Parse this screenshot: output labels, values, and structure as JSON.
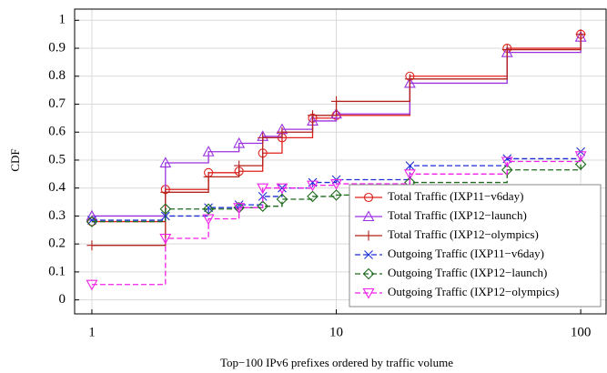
{
  "chart_data": {
    "type": "step",
    "xlabel": "Top−100 IPv6 prefixes ordered by traffic volume",
    "ylabel": "CDF",
    "x": [
      1,
      2,
      3,
      4,
      5,
      6,
      8,
      10,
      20,
      50,
      100
    ],
    "xscale": "log",
    "xlim": [
      0.85,
      127
    ],
    "xticks": [
      1,
      10,
      100
    ],
    "ylim": [
      -0.05,
      1.04
    ],
    "yticks": [
      0,
      0.1,
      0.2,
      0.3,
      0.4,
      0.5,
      0.6,
      0.7,
      0.8,
      0.9,
      1
    ],
    "grid": true,
    "legend": "lower right",
    "series": [
      {
        "name": "Total Traffic (IXP11−v6day)",
        "color": "#e0201b",
        "marker": "circle",
        "dashed": false,
        "values": [
          0.28,
          0.395,
          0.455,
          0.46,
          0.525,
          0.58,
          0.65,
          0.66,
          0.8,
          0.9,
          0.95
        ]
      },
      {
        "name": "Total Traffic (IXP12−launch)",
        "color": "#9b30e0",
        "marker": "triangle-up",
        "dashed": false,
        "values": [
          0.3,
          0.49,
          0.53,
          0.56,
          0.585,
          0.61,
          0.64,
          0.665,
          0.775,
          0.885,
          0.94
        ]
      },
      {
        "name": "Total Traffic (IXP12−olympics)",
        "color": "#b3221b",
        "marker": "plus",
        "dashed": false,
        "values": [
          0.195,
          0.385,
          0.44,
          0.48,
          0.58,
          0.6,
          0.66,
          0.71,
          0.79,
          0.895,
          0.95
        ]
      },
      {
        "name": "Outgoing Traffic (IXP11−v6day)",
        "color": "#1f2fd8",
        "marker": "x",
        "dashed": true,
        "values": [
          0.285,
          0.3,
          0.33,
          0.34,
          0.37,
          0.4,
          0.42,
          0.43,
          0.48,
          0.505,
          0.53
        ]
      },
      {
        "name": "Outgoing Traffic (IXP12−launch)",
        "color": "#1e6b1e",
        "marker": "diamond",
        "dashed": true,
        "values": [
          0.28,
          0.325,
          0.325,
          0.33,
          0.335,
          0.36,
          0.37,
          0.375,
          0.42,
          0.465,
          0.485
        ]
      },
      {
        "name": "Outgoing Traffic (IXP12−olympics)",
        "color": "#f020e8",
        "marker": "triangle-down",
        "dashed": true,
        "values": [
          0.055,
          0.22,
          0.29,
          0.33,
          0.4,
          0.4,
          0.41,
          0.415,
          0.45,
          0.495,
          0.515
        ]
      }
    ]
  }
}
